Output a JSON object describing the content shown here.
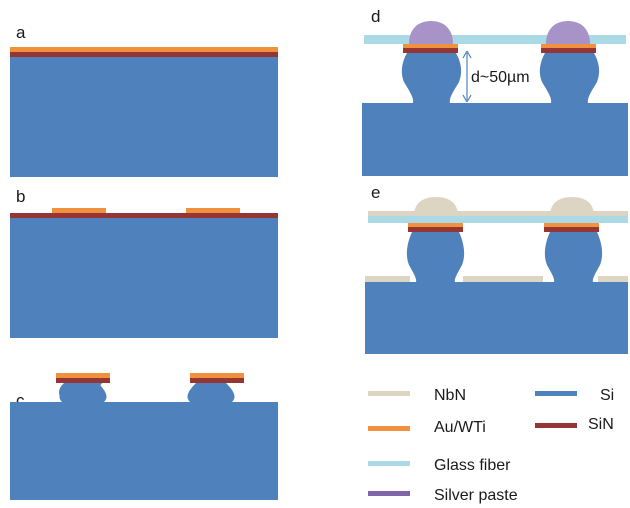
{
  "panels": {
    "a": "a",
    "b": "b",
    "c": "c",
    "d": "d",
    "e": "e"
  },
  "dimension": "d~50µm",
  "legend": [
    {
      "label": "NbN",
      "color": "#ddd5c3"
    },
    {
      "label": "Au/WTi",
      "color": "#f0913d"
    },
    {
      "label": "Glass fiber",
      "color": "#acd9e6"
    },
    {
      "label": "Silver paste",
      "color": "#8066a8"
    },
    {
      "label": "Si",
      "color": "#4f81bd"
    },
    {
      "label": "SiN",
      "color": "#963634"
    }
  ],
  "colors": {
    "si": "#4f81bd",
    "sin": "#963634",
    "au": "#f0913d",
    "glass": "#acd9e6",
    "silver": "#a893c9",
    "nbn": "#ddd5c3",
    "arrow": "#4f81bd"
  }
}
